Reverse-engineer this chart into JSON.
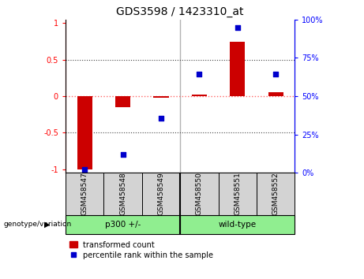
{
  "title": "GDS3598 / 1423310_at",
  "samples": [
    "GSM458547",
    "GSM458548",
    "GSM458549",
    "GSM458550",
    "GSM458551",
    "GSM458552"
  ],
  "red_bars": [
    -1.0,
    -0.15,
    -0.02,
    0.02,
    0.75,
    0.05
  ],
  "blue_dots_pct": [
    0.0,
    10.0,
    35.0,
    65.0,
    97.0,
    65.0
  ],
  "groups": [
    {
      "label": "p300 +/-",
      "start": 0,
      "end": 3,
      "color": "#90EE90"
    },
    {
      "label": "wild-type",
      "start": 3,
      "end": 6,
      "color": "#90EE90"
    }
  ],
  "group_separator": 3,
  "ylim_left": [
    -1.05,
    1.05
  ],
  "ylim_right": [
    0,
    100
  ],
  "yticks_left": [
    -1,
    -0.5,
    0,
    0.5,
    1
  ],
  "yticks_right": [
    0,
    25,
    50,
    75,
    100
  ],
  "ytick_labels_left": [
    "-1",
    "-0.5",
    "0",
    "0.5",
    "1"
  ],
  "ytick_labels_right": [
    "0%",
    "25%",
    "50%",
    "75%",
    "100%"
  ],
  "bar_color": "#CC0000",
  "dot_color": "#0000CC",
  "zero_line_color": "#FF6666",
  "hline_color": "#444444",
  "legend_items": [
    "transformed count",
    "percentile rank within the sample"
  ],
  "genotype_label": "genotype/variation",
  "title_fontsize": 10,
  "tick_fontsize": 7,
  "label_fontsize": 7.5,
  "sample_fontsize": 6.5,
  "bar_width": 0.4,
  "dot_size": 25
}
